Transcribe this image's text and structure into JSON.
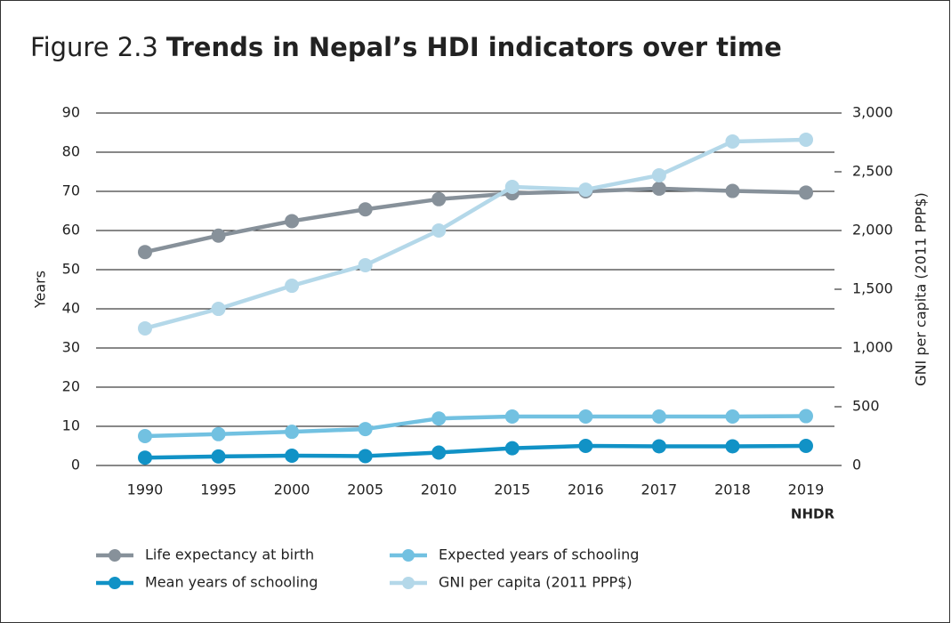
{
  "chart_data": {
    "type": "line",
    "title_prefix": "Figure 2.3",
    "title": "Trends in Nepal’s HDI indicators over time",
    "categories": [
      "1990",
      "1995",
      "2000",
      "2005",
      "2010",
      "2015",
      "2016",
      "2017",
      "2018",
      "2019"
    ],
    "category_note": "NHDR",
    "ylabel": "Years",
    "y2label": "GNI per capita (2011 PPP$)",
    "ylim": [
      0,
      90
    ],
    "yticks": [
      0,
      10,
      20,
      30,
      40,
      50,
      60,
      70,
      80,
      90
    ],
    "y2lim": [
      0,
      3000
    ],
    "y2ticks": [
      0,
      500,
      {
        "value": 1000,
        "label": "1,000"
      },
      {
        "value": 1500,
        "label": "1,500"
      },
      {
        "value": 2000,
        "label": "2,000"
      },
      {
        "value": 2500,
        "label": "2,500"
      },
      {
        "value": 3000,
        "label": "3,000"
      }
    ],
    "grid": true,
    "legend": "bottom",
    "series": [
      {
        "name": "Life expectancy at birth",
        "color": "#87919a",
        "values": [
          54.5,
          58.7,
          62.4,
          65.4,
          68.0,
          69.5,
          70.0,
          70.7,
          70.1,
          69.7
        ]
      },
      {
        "name": "Mean years of schooling",
        "color": "#1192c6",
        "values": [
          2.0,
          2.3,
          2.5,
          2.4,
          3.3,
          4.4,
          5.0,
          4.9,
          4.9,
          5.0
        ]
      },
      {
        "name": "Expected years of schooling",
        "color": "#72c1e1",
        "values": [
          7.5,
          8.0,
          8.6,
          9.3,
          12.0,
          12.5,
          12.5,
          12.5,
          12.5,
          12.6
        ]
      },
      {
        "name": "GNI per capita (2011 PPP$)",
        "color": "#b4d8e9",
        "axis": "y2",
        "values": [
          1167,
          1333,
          1530,
          1705,
          2000,
          2371,
          2348,
          2470,
          2758,
          2773
        ]
      }
    ]
  }
}
